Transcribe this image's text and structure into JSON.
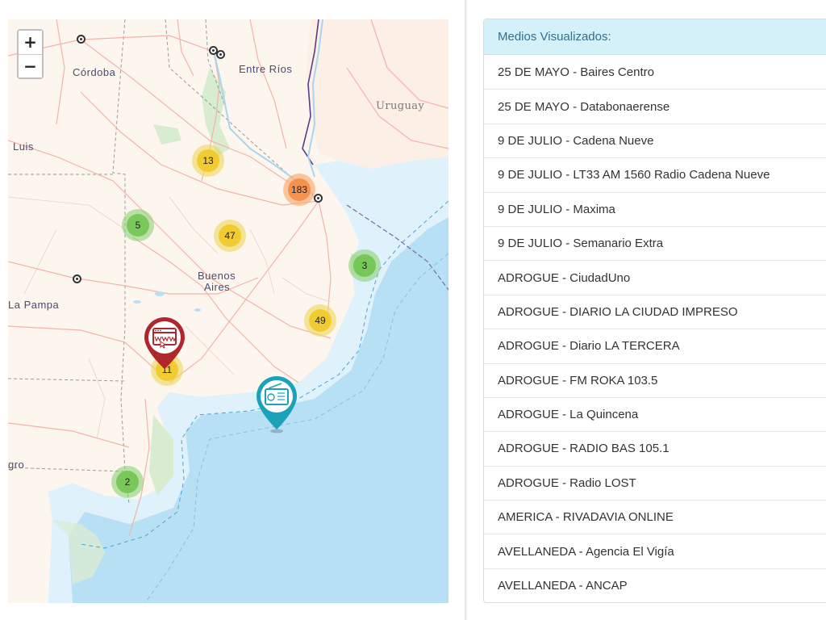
{
  "map": {
    "zoom_in_label": "+",
    "zoom_out_label": "−",
    "labels": {
      "cordoba": "Córdoba",
      "entre_rios": "Entre Ríos",
      "uruguay": "Uruguay",
      "luis": "Luis",
      "buenos_aires_1": "Buenos",
      "buenos_aires_2": "Aires",
      "la_pampa": "La Pampa",
      "negro": "gro"
    },
    "clusters": {
      "c13": "13",
      "c183": "183",
      "c5": "5",
      "c47": "47",
      "c3": "3",
      "c49": "49",
      "c11": "11",
      "c2": "2"
    },
    "colors": {
      "land": "#fdf6ee",
      "water": "#b8e0f5",
      "cluster_small": "#6ec34b",
      "cluster_medium": "#f0c81e",
      "cluster_large": "#f58c46",
      "web_pin": "#b0262b",
      "radio_pin": "#1ca2b8"
    },
    "pins": [
      {
        "type": "web",
        "icon": "www-icon"
      },
      {
        "type": "radio",
        "icon": "radio-icon"
      }
    ]
  },
  "panel": {
    "title": "Medios Visualizados:",
    "items": [
      "25 DE MAYO - Baires Centro",
      "25 DE MAYO - Databonaerense",
      "9 DE JULIO - Cadena Nueve",
      "9 DE JULIO - LT33 AM 1560 Radio Cadena Nueve",
      "9 DE JULIO - Maxima",
      "9 DE JULIO - Semanario Extra",
      "ADROGUE - CiudadUno",
      "ADROGUE - DIARIO LA CIUDAD IMPRESO",
      "ADROGUE - Diario LA TERCERA",
      "ADROGUE - FM ROKA 103.5",
      "ADROGUE - La Quincena",
      "ADROGUE - RADIO BAS 105.1",
      "ADROGUE - Radio LOST",
      "AMERICA - RIVADAVIA ONLINE",
      "AVELLANEDA - Agencia El Vigía",
      "AVELLANEDA - ANCAP"
    ]
  }
}
